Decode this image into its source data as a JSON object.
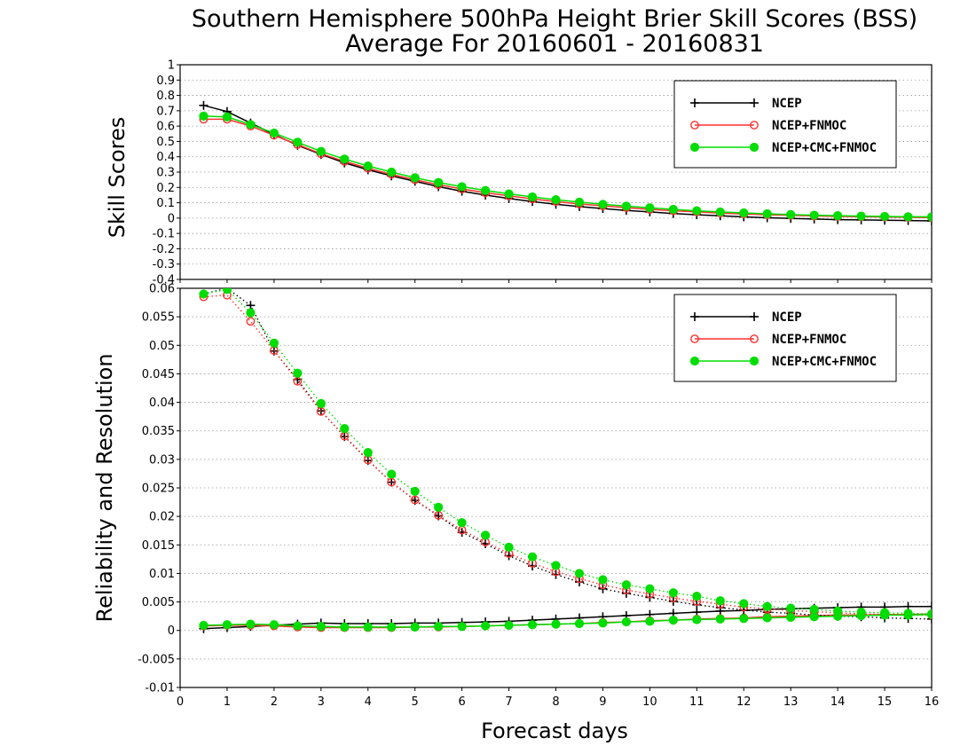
{
  "chart_data": [
    {
      "type": "line",
      "title": "Southern Hemisphere 500hPa Height Brier Skill Scores (BSS)",
      "subtitle": "Average For 20160601 - 20160831",
      "ylabel": "Skill Scores",
      "xlabel": "",
      "xlim": [
        0,
        16
      ],
      "ylim": [
        -0.4,
        1
      ],
      "grid": true,
      "legend": "top-right",
      "x": [
        0.5,
        1,
        1.5,
        2,
        2.5,
        3,
        3.5,
        4,
        4.5,
        5,
        5.5,
        6,
        6.5,
        7,
        7.5,
        8,
        8.5,
        9,
        9.5,
        10,
        10.5,
        11,
        11.5,
        12,
        12.5,
        13,
        13.5,
        14,
        14.5,
        15,
        15.5,
        16
      ],
      "yticks": [
        -0.4,
        -0.3,
        -0.2,
        -0.1,
        0,
        0.1,
        0.2,
        0.3,
        0.4,
        0.5,
        0.6,
        0.7,
        0.8,
        0.9,
        1
      ],
      "ytick_labels": [
        "-0.4",
        "-0.3",
        "-0.2",
        "-0.1",
        "0",
        "0.1",
        "0.2",
        "0.3",
        "0.4",
        "0.5",
        "0.6",
        "0.7",
        "0.8",
        "0.9",
        "1"
      ],
      "series": [
        {
          "name": "NCEP",
          "color": "#000000",
          "marker": "plus",
          "style": "solid",
          "values": [
            0.735,
            0.695,
            0.62,
            0.545,
            0.475,
            0.415,
            0.36,
            0.315,
            0.275,
            0.24,
            0.205,
            0.175,
            0.15,
            0.128,
            0.108,
            0.09,
            0.075,
            0.062,
            0.05,
            0.04,
            0.03,
            0.022,
            0.015,
            0.008,
            0.002,
            -0.002,
            -0.006,
            -0.01,
            -0.012,
            -0.014,
            -0.016,
            -0.018
          ]
        },
        {
          "name": "NCEP+FNMOC",
          "color": "#ff3030",
          "marker": "open-circle",
          "style": "solid",
          "values": [
            0.645,
            0.645,
            0.6,
            0.54,
            0.48,
            0.42,
            0.37,
            0.325,
            0.285,
            0.25,
            0.218,
            0.19,
            0.165,
            0.145,
            0.125,
            0.108,
            0.092,
            0.08,
            0.068,
            0.057,
            0.048,
            0.04,
            0.033,
            0.027,
            0.022,
            0.018,
            0.014,
            0.011,
            0.009,
            0.007,
            0.005,
            0.004
          ]
        },
        {
          "name": "NCEP+CMC+FNMOC",
          "color": "#00dd00",
          "marker": "filled-circle",
          "style": "solid",
          "values": [
            0.665,
            0.66,
            0.61,
            0.555,
            0.495,
            0.435,
            0.385,
            0.34,
            0.3,
            0.263,
            0.232,
            0.205,
            0.18,
            0.158,
            0.138,
            0.12,
            0.104,
            0.09,
            0.078,
            0.067,
            0.057,
            0.048,
            0.04,
            0.034,
            0.028,
            0.023,
            0.019,
            0.016,
            0.013,
            0.011,
            0.009,
            0.008
          ]
        }
      ]
    },
    {
      "type": "line",
      "title": "",
      "ylabel": "Reliability and Resolution",
      "xlabel": "Forecast days",
      "xlim": [
        0,
        16
      ],
      "ylim": [
        -0.01,
        0.06
      ],
      "grid": true,
      "legend": "top-right",
      "x": [
        0.5,
        1,
        1.5,
        2,
        2.5,
        3,
        3.5,
        4,
        4.5,
        5,
        5.5,
        6,
        6.5,
        7,
        7.5,
        8,
        8.5,
        9,
        9.5,
        10,
        10.5,
        11,
        11.5,
        12,
        12.5,
        13,
        13.5,
        14,
        14.5,
        15,
        15.5,
        16
      ],
      "xticks": [
        0,
        1,
        2,
        3,
        4,
        5,
        6,
        7,
        8,
        9,
        10,
        11,
        12,
        13,
        14,
        15,
        16
      ],
      "xtick_labels": [
        "0",
        "1",
        "2",
        "3",
        "4",
        "5",
        "6",
        "7",
        "8",
        "9",
        "10",
        "11",
        "12",
        "13",
        "14",
        "15",
        "16"
      ],
      "yticks": [
        -0.01,
        -0.005,
        0,
        0.005,
        0.01,
        0.015,
        0.02,
        0.025,
        0.03,
        0.035,
        0.04,
        0.045,
        0.05,
        0.055,
        0.06
      ],
      "ytick_labels": [
        "-0.01",
        "-0.005",
        "0",
        "0.005",
        "0.01",
        "0.015",
        "0.02",
        "0.025",
        "0.03",
        "0.035",
        "0.04",
        "0.045",
        "0.05",
        "0.055",
        "0.06"
      ],
      "series": [
        {
          "name": "NCEP",
          "color": "#000000",
          "marker": "plus",
          "style": "solid",
          "values": [
            0.0003,
            0.0005,
            0.0007,
            0.0009,
            0.0011,
            0.0013,
            0.0012,
            0.0012,
            0.0012,
            0.0013,
            0.0013,
            0.0014,
            0.0015,
            0.0016,
            0.0018,
            0.002,
            0.0022,
            0.0024,
            0.0026,
            0.0028,
            0.003,
            0.0032,
            0.0034,
            0.0035,
            0.0037,
            0.0038,
            0.0039,
            0.004,
            0.0041,
            0.0041,
            0.0042,
            0.0042
          ]
        },
        {
          "name": "NCEP+FNMOC",
          "color": "#ff3030",
          "marker": "open-circle",
          "style": "solid",
          "values": [
            0.0008,
            0.0009,
            0.0009,
            0.0008,
            0.0006,
            0.0005,
            0.0005,
            0.0005,
            0.0005,
            0.0006,
            0.0006,
            0.0007,
            0.0008,
            0.0009,
            0.001,
            0.0011,
            0.0012,
            0.0014,
            0.0015,
            0.0017,
            0.0018,
            0.002,
            0.0021,
            0.0022,
            0.0024,
            0.0025,
            0.0026,
            0.0027,
            0.0027,
            0.0028,
            0.0028,
            0.0029
          ]
        },
        {
          "name": "NCEP",
          "color": "#000000",
          "marker": "plus",
          "style": "dotted",
          "values": [
            0.059,
            0.06,
            0.057,
            0.049,
            0.044,
            0.0385,
            0.034,
            0.0298,
            0.026,
            0.0228,
            0.0201,
            0.0172,
            0.0152,
            0.0131,
            0.0113,
            0.0098,
            0.0085,
            0.0073,
            0.0065,
            0.0058,
            0.0051,
            0.0045,
            0.004,
            0.0036,
            0.0032,
            0.003,
            0.0027,
            0.0025,
            0.0024,
            0.0022,
            0.0021,
            0.002
          ]
        },
        {
          "name": "NCEP+FNMOC",
          "color": "#ff3030",
          "marker": "open-circle",
          "style": "dotted",
          "values": [
            0.0585,
            0.0588,
            0.0542,
            0.0491,
            0.0437,
            0.0384,
            0.0341,
            0.0299,
            0.026,
            0.0229,
            0.0202,
            0.0176,
            0.0155,
            0.0135,
            0.0118,
            0.0103,
            0.0091,
            0.008,
            0.0071,
            0.0064,
            0.0057,
            0.0051,
            0.0046,
            0.0041,
            0.0038,
            0.0035,
            0.0033,
            0.0031,
            0.0029,
            0.0028,
            0.0027,
            0.0027
          ]
        },
        {
          "name": "NCEP+CMC+FNMOC",
          "color": "#00dd00",
          "marker": "filled-circle",
          "style": "solid",
          "values": [
            0.0009,
            0.001,
            0.0011,
            0.001,
            0.0008,
            0.0007,
            0.0006,
            0.0006,
            0.0006,
            0.0006,
            0.0007,
            0.0007,
            0.0008,
            0.0009,
            0.001,
            0.0011,
            0.0012,
            0.0013,
            0.0015,
            0.0016,
            0.0018,
            0.0019,
            0.002,
            0.0021,
            0.0022,
            0.0023,
            0.0024,
            0.0025,
            0.0026,
            0.0027,
            0.0027,
            0.0028
          ]
        },
        {
          "name": "NCEP+CMC+FNMOC",
          "color": "#00dd00",
          "marker": "filled-circle",
          "style": "dotted",
          "values": [
            0.059,
            0.0598,
            0.0557,
            0.0504,
            0.0451,
            0.0398,
            0.0354,
            0.0312,
            0.0274,
            0.0244,
            0.0216,
            0.0189,
            0.0167,
            0.0146,
            0.0129,
            0.0114,
            0.01,
            0.0089,
            0.008,
            0.0073,
            0.0066,
            0.006,
            0.0052,
            0.0047,
            0.0042,
            0.0039,
            0.0037,
            0.0034,
            0.0032,
            0.0031,
            0.003,
            0.0029
          ]
        }
      ],
      "legend_entries": [
        "NCEP",
        "NCEP+FNMOC",
        "NCEP+CMC+FNMOC"
      ]
    }
  ]
}
